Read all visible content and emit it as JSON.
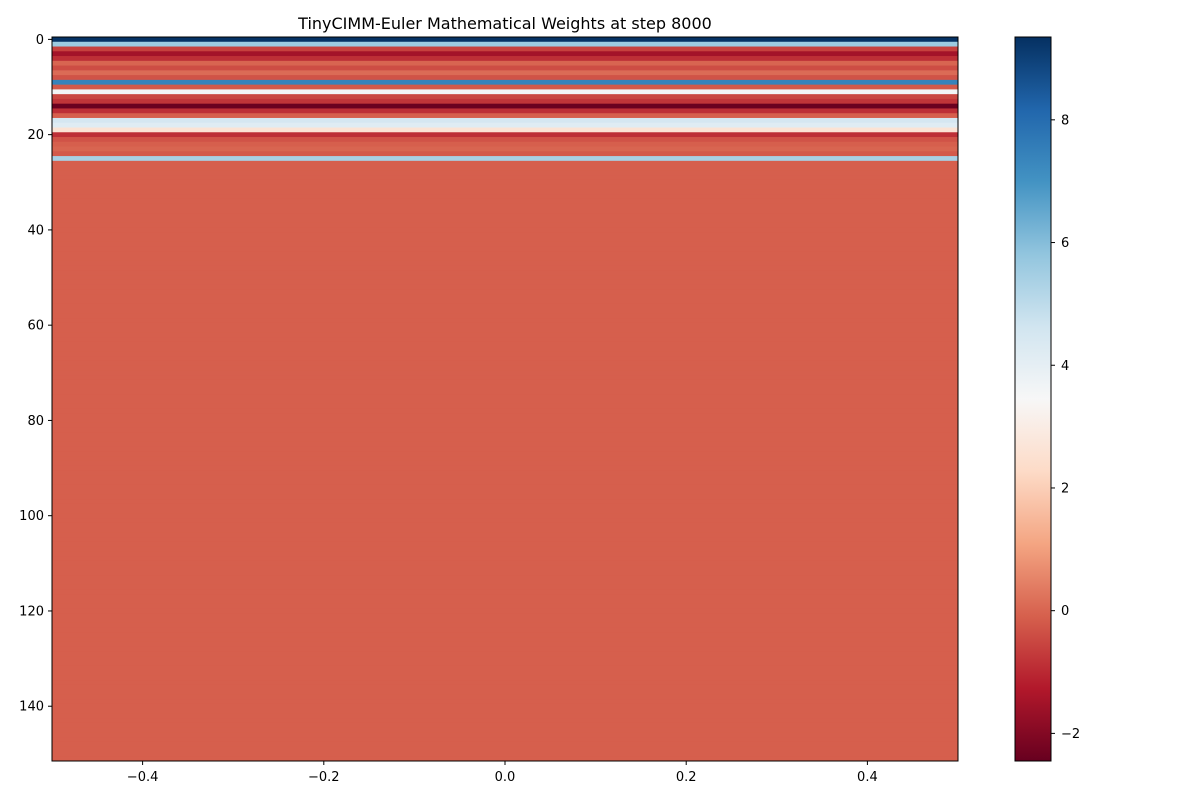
{
  "chart_data": {
    "type": "heatmap",
    "title": "TinyCIMM-Euler Mathematical Weights at step 8000",
    "xlabel": "",
    "ylabel": "",
    "x_extent": [
      -0.5,
      0.5
    ],
    "y_extent": [
      -0.5,
      151.5
    ],
    "xlim": [
      -0.5,
      0.5
    ],
    "ylim": [
      151.5,
      -0.5
    ],
    "x_ticks": [
      -0.4,
      -0.2,
      0.0,
      0.2,
      0.4
    ],
    "x_tick_labels": [
      "−0.4",
      "−0.2",
      "0.0",
      "0.2",
      "0.4"
    ],
    "y_ticks": [
      0,
      20,
      40,
      60,
      80,
      100,
      120,
      140
    ],
    "y_tick_labels": [
      "0",
      "20",
      "40",
      "60",
      "80",
      "100",
      "120",
      "140"
    ],
    "colormap": "RdBu",
    "colormap_stops": [
      "#67001f",
      "#b2182b",
      "#d6604d",
      "#f4a582",
      "#fddbc7",
      "#f7f7f7",
      "#d1e5f0",
      "#92c5de",
      "#4393c3",
      "#2166ac",
      "#053061"
    ],
    "vmin": -2.45,
    "vmax": 9.35,
    "colorbar_ticks": [
      -2,
      0,
      2,
      4,
      6,
      8
    ],
    "colorbar_tick_labels": [
      "−2",
      "0",
      "2",
      "4",
      "6",
      "8"
    ],
    "columns": 1,
    "rows": 152,
    "row_values_head": [
      9.3,
      5.6,
      -0.6,
      -1.5,
      -0.9,
      0.0,
      -0.4,
      0.1,
      -0.3,
      7.4,
      -0.2,
      3.6,
      -0.5,
      -0.8,
      -2.4,
      -0.9,
      -0.1,
      4.5,
      4.2,
      2.6,
      -0.9,
      -0.3,
      -0.1,
      0.0,
      -0.2,
      5.4
    ],
    "row_value_default": -0.1
  }
}
